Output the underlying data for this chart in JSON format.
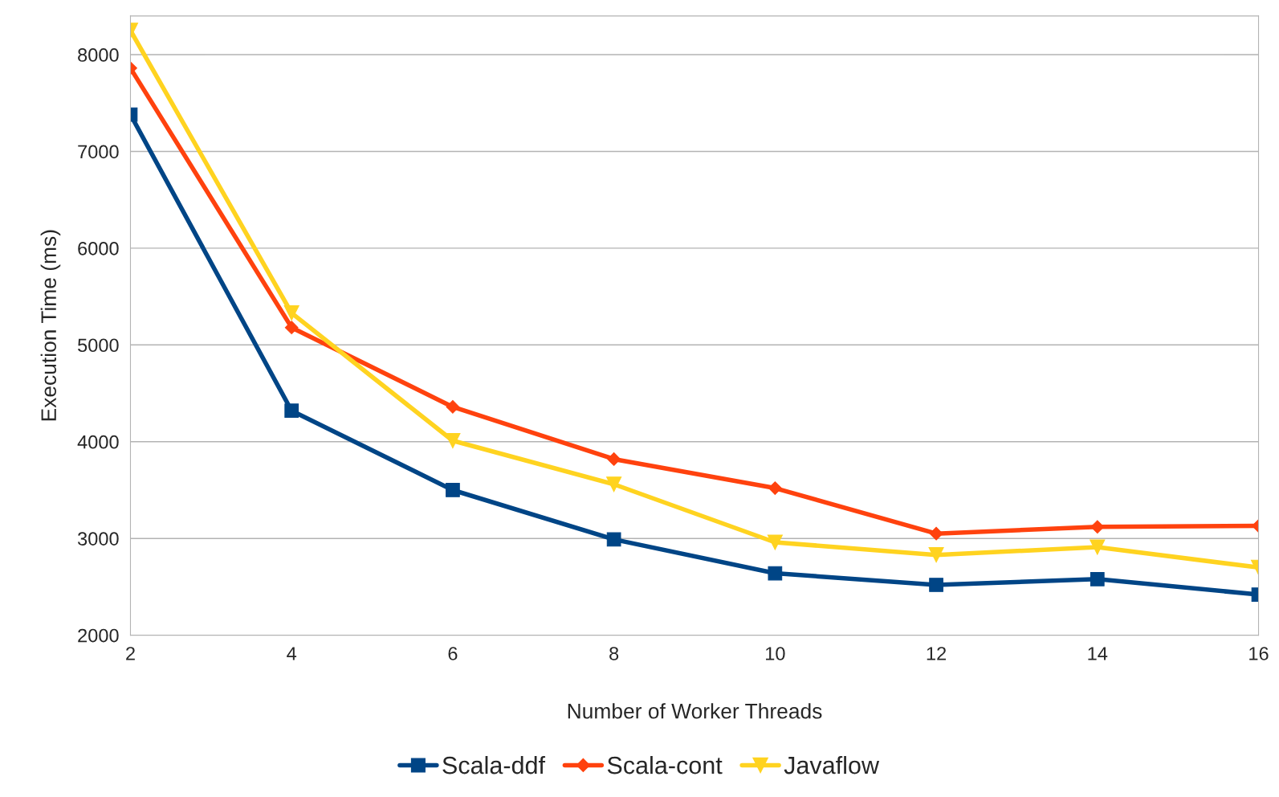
{
  "chart_data": {
    "type": "line",
    "xlabel": "Number of Worker Threads",
    "ylabel": "Execution Time (ms)",
    "x": [
      2,
      4,
      6,
      8,
      10,
      12,
      14,
      16
    ],
    "series": [
      {
        "name": "Scala-ddf",
        "color": "#004586",
        "marker": "square",
        "values": [
          7380,
          4320,
          3500,
          2990,
          2640,
          2520,
          2580,
          2420
        ]
      },
      {
        "name": "Scala-cont",
        "color": "#ff420e",
        "marker": "diamond",
        "values": [
          7860,
          5180,
          4360,
          3820,
          3520,
          3050,
          3120,
          3130
        ]
      },
      {
        "name": "Javaflow",
        "color": "#ffd320",
        "marker": "triangle",
        "values": [
          8250,
          5330,
          4010,
          3560,
          2960,
          2830,
          2910,
          2700
        ]
      }
    ],
    "xlim": [
      2,
      16
    ],
    "xticks": [
      2,
      4,
      6,
      8,
      10,
      12,
      14,
      16
    ],
    "ylim": [
      2000,
      8400
    ],
    "yticks": [
      2000,
      3000,
      4000,
      5000,
      6000,
      7000,
      8000
    ],
    "grid": "y",
    "legend": "bottom"
  }
}
